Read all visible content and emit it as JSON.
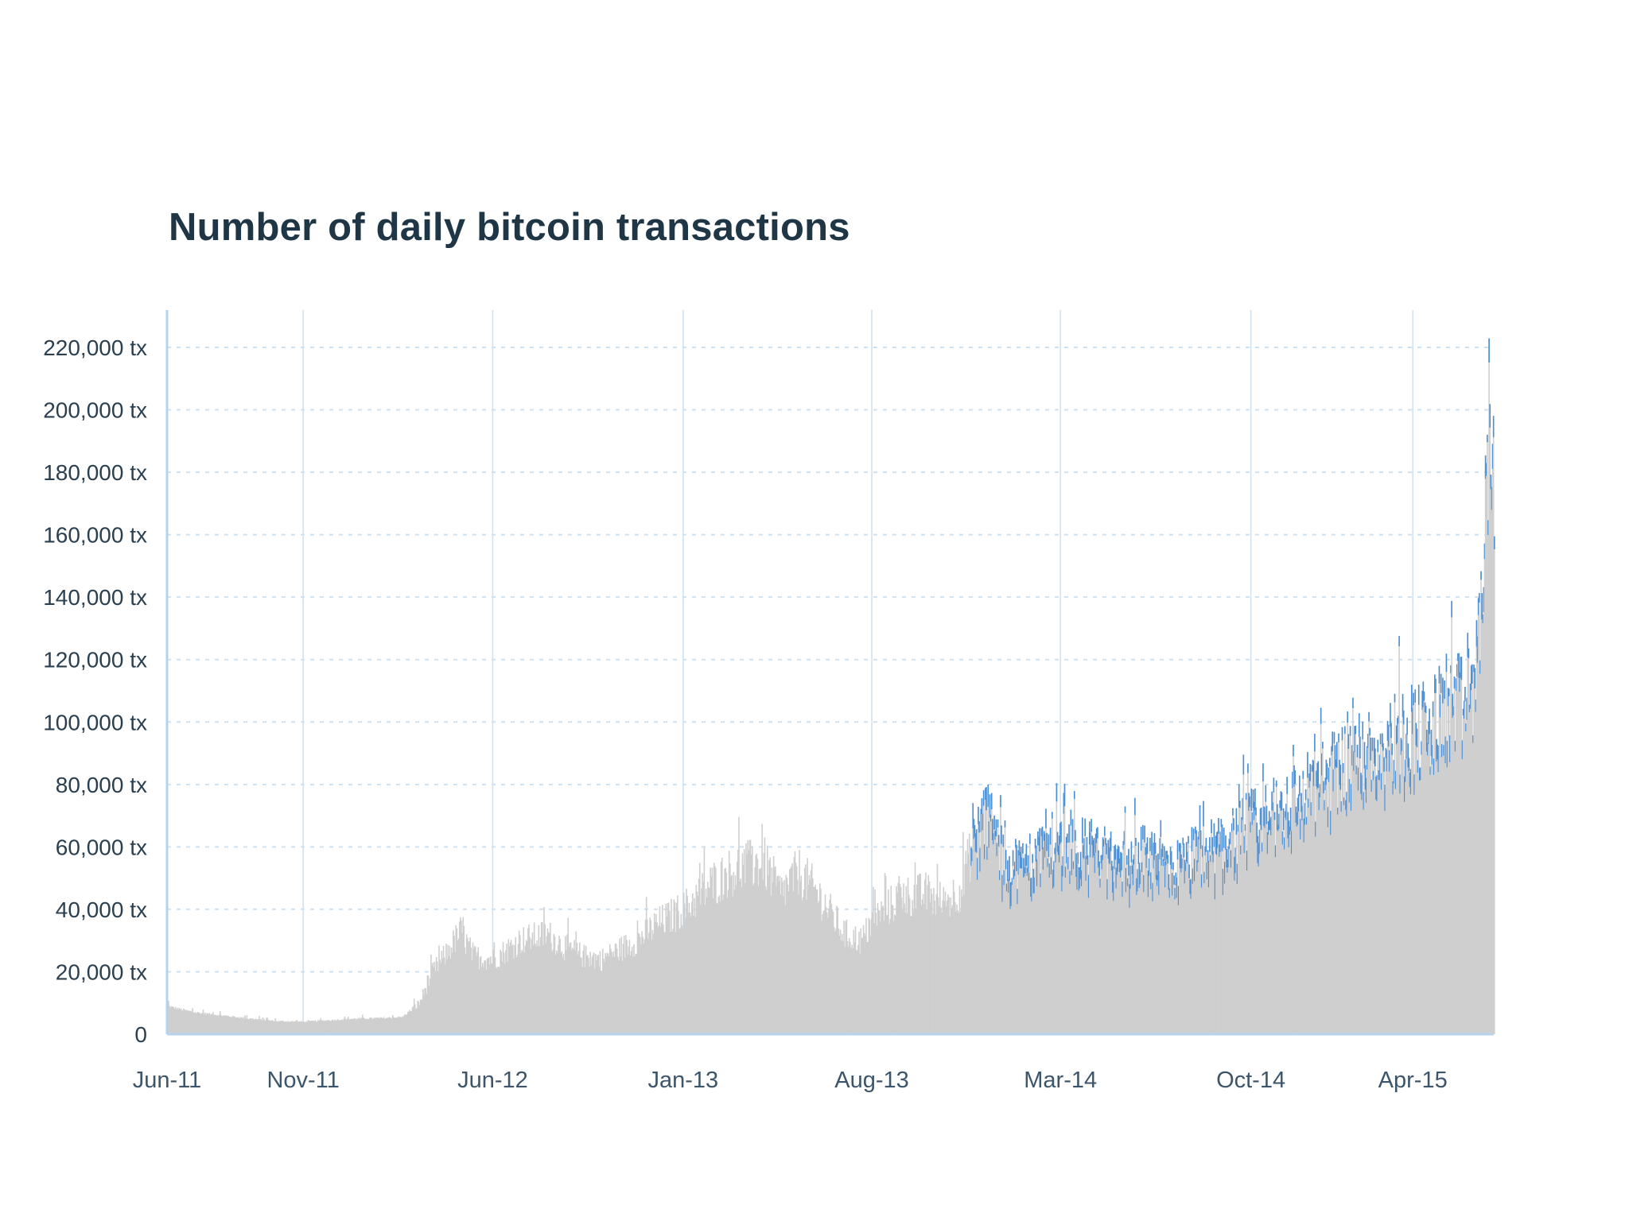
{
  "chart_data": {
    "type": "bar",
    "title": "Number of daily bitcoin transactions",
    "xlabel": "",
    "ylabel": "",
    "x_range": [
      "2011-06-01",
      "2015-07-01"
    ],
    "ylim": [
      0,
      220000
    ],
    "grid": true,
    "legend": "none",
    "y_ticks": [
      {
        "value": 220000,
        "label": "220,000 tx"
      },
      {
        "value": 200000,
        "label": "200,000 tx"
      },
      {
        "value": 180000,
        "label": "180,000 tx"
      },
      {
        "value": 160000,
        "label": "160,000 tx"
      },
      {
        "value": 140000,
        "label": "140,000 tx"
      },
      {
        "value": 120000,
        "label": "120,000 tx"
      },
      {
        "value": 100000,
        "label": "100,000 tx"
      },
      {
        "value": 80000,
        "label": "80,000 tx"
      },
      {
        "value": 60000,
        "label": "60,000 tx"
      },
      {
        "value": 40000,
        "label": "40,000 tx"
      },
      {
        "value": 20000,
        "label": "20,000 tx"
      },
      {
        "value": 0,
        "label": "0"
      }
    ],
    "x_ticks": [
      {
        "date": "2011-06-01",
        "label": "Jun-11"
      },
      {
        "date": "2011-11-01",
        "label": "Nov-11"
      },
      {
        "date": "2012-06-01",
        "label": "Jun-12"
      },
      {
        "date": "2013-01-01",
        "label": "Jan-13"
      },
      {
        "date": "2013-08-01",
        "label": "Aug-13"
      },
      {
        "date": "2014-03-01",
        "label": "Mar-14"
      },
      {
        "date": "2014-10-01",
        "label": "Oct-14"
      },
      {
        "date": "2015-04-01",
        "label": "Apr-15"
      }
    ],
    "series": [
      {
        "points": [
          [
            "2011-06-01",
            9000
          ],
          [
            "2011-06-15",
            8000
          ],
          [
            "2011-07-01",
            7000
          ],
          [
            "2011-08-01",
            6000
          ],
          [
            "2011-09-01",
            5000
          ],
          [
            "2011-10-01",
            4200
          ],
          [
            "2011-11-01",
            4000
          ],
          [
            "2011-12-01",
            4500
          ],
          [
            "2012-01-01",
            5000
          ],
          [
            "2012-02-01",
            5200
          ],
          [
            "2012-02-20",
            5500
          ],
          [
            "2012-03-10",
            10000
          ],
          [
            "2012-03-25",
            20000
          ],
          [
            "2012-04-10",
            26000
          ],
          [
            "2012-04-25",
            33000
          ],
          [
            "2012-05-10",
            25000
          ],
          [
            "2012-06-01",
            24000
          ],
          [
            "2012-07-01",
            30000
          ],
          [
            "2012-08-01",
            32000
          ],
          [
            "2012-08-20",
            28000
          ],
          [
            "2012-09-10",
            25000
          ],
          [
            "2012-10-01",
            24000
          ],
          [
            "2012-10-20",
            27000
          ],
          [
            "2012-11-10",
            30000
          ],
          [
            "2012-12-01",
            35000
          ],
          [
            "2013-01-01",
            40000
          ],
          [
            "2013-02-01",
            48000
          ],
          [
            "2013-03-01",
            53000
          ],
          [
            "2013-04-01",
            55000
          ],
          [
            "2013-04-20",
            45000
          ],
          [
            "2013-05-10",
            52000
          ],
          [
            "2013-06-01",
            45000
          ],
          [
            "2013-07-01",
            32000
          ],
          [
            "2013-07-20",
            30000
          ],
          [
            "2013-08-01",
            36000
          ],
          [
            "2013-09-01",
            44000
          ],
          [
            "2013-10-01",
            45000
          ],
          [
            "2013-10-20",
            42000
          ],
          [
            "2013-11-10",
            47000
          ],
          [
            "2013-11-25",
            65000
          ],
          [
            "2013-12-10",
            72000
          ],
          [
            "2013-12-25",
            57000
          ],
          [
            "2014-01-15",
            55000
          ],
          [
            "2014-02-10",
            60000
          ],
          [
            "2014-03-01",
            63000
          ],
          [
            "2014-04-01",
            60000
          ],
          [
            "2014-05-01",
            56000
          ],
          [
            "2014-06-01",
            58000
          ],
          [
            "2014-07-01",
            53000
          ],
          [
            "2014-08-01",
            58000
          ],
          [
            "2014-09-01",
            62000
          ],
          [
            "2014-10-01",
            68000
          ],
          [
            "2014-11-01",
            72000
          ],
          [
            "2014-12-01",
            78000
          ],
          [
            "2015-01-01",
            85000
          ],
          [
            "2015-01-20",
            90000
          ],
          [
            "2015-02-15",
            92000
          ],
          [
            "2015-03-15",
            96000
          ],
          [
            "2015-04-01",
            99000
          ],
          [
            "2015-04-20",
            98000
          ],
          [
            "2015-05-10",
            108000
          ],
          [
            "2015-05-25",
            105000
          ],
          [
            "2015-06-10",
            112000
          ],
          [
            "2015-06-22",
            170000
          ],
          [
            "2015-06-26",
            215000
          ],
          [
            "2015-07-01",
            160000
          ]
        ]
      }
    ],
    "colors": {
      "bars": "#cfcfcf",
      "highlight": "#4a8fd6",
      "grid": "#cfe0ef",
      "axis": "#b6d3ec",
      "title": "#1f3646",
      "tick_text": "#2a3f50"
    }
  }
}
